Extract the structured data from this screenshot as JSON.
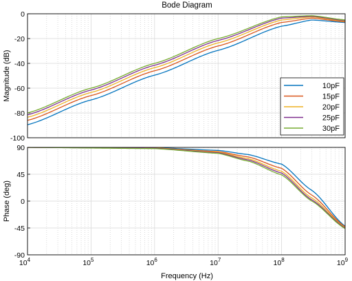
{
  "title": "Bode Diagram",
  "xlabel": "Frequency  (Hz)",
  "colors": {
    "series": [
      "#0072BD",
      "#D95319",
      "#EDB120",
      "#7E2F8E",
      "#77AC30"
    ],
    "grid_major": "#d9d9d9",
    "grid_minor": "#c8c8c8",
    "axis": "#000000"
  },
  "chart_data": [
    {
      "type": "line",
      "title": "Bode Diagram",
      "ylabel": "Magnitude (dB)",
      "xscale": "log",
      "xlim": [
        10000,
        1000000000
      ],
      "ylim": [
        -100,
        0
      ],
      "yticks": [
        "0",
        "-20",
        "-40",
        "-60",
        "-80",
        "-100"
      ],
      "grid": true,
      "legend_position": "right",
      "series": [
        {
          "name": "10pF",
          "x": [
            10000.0,
            100000.0,
            1000000.0,
            10000000.0,
            100000000.0,
            300000000.0,
            1000000000.0
          ],
          "y": [
            -89.5,
            -69.5,
            -49.5,
            -29.5,
            -10,
            -5,
            -7
          ]
        },
        {
          "name": "15pF",
          "x": [
            10000.0,
            100000.0,
            1000000.0,
            10000000.0,
            100000000.0,
            300000000.0,
            1000000000.0
          ],
          "y": [
            -86,
            -66,
            -46,
            -26,
            -7,
            -3.5,
            -6.5
          ]
        },
        {
          "name": "20pF",
          "x": [
            10000.0,
            100000.0,
            1000000.0,
            10000000.0,
            100000000.0,
            300000000.0,
            1000000000.0
          ],
          "y": [
            -83.5,
            -63.5,
            -43.5,
            -23.5,
            -5,
            -2.5,
            -6
          ]
        },
        {
          "name": "25pF",
          "x": [
            10000.0,
            100000.0,
            1000000.0,
            10000000.0,
            100000000.0,
            300000000.0,
            1000000000.0
          ],
          "y": [
            -81.5,
            -61.5,
            -41.5,
            -21.5,
            -3.5,
            -2,
            -5.5
          ]
        },
        {
          "name": "30pF",
          "x": [
            10000.0,
            100000.0,
            1000000.0,
            10000000.0,
            100000000.0,
            300000000.0,
            1000000000.0
          ],
          "y": [
            -80,
            -60,
            -40,
            -20,
            -2.5,
            -1.5,
            -5
          ]
        }
      ]
    },
    {
      "type": "line",
      "xlabel": "Frequency  (Hz)",
      "ylabel": "Phase (deg)",
      "xscale": "log",
      "xlim": [
        10000,
        1000000000
      ],
      "ylim": [
        -90,
        90
      ],
      "yticks": [
        "90",
        "45",
        "0",
        "-45",
        "-90"
      ],
      "xticks": [
        {
          "base": "10",
          "exp": "4"
        },
        {
          "base": "10",
          "exp": "5"
        },
        {
          "base": "10",
          "exp": "6"
        },
        {
          "base": "10",
          "exp": "7"
        },
        {
          "base": "10",
          "exp": "8"
        },
        {
          "base": "10",
          "exp": "9"
        }
      ],
      "grid": true,
      "series": [
        {
          "name": "10pF",
          "x": [
            10000.0,
            1000000.0,
            10000000.0,
            30000000.0,
            100000000.0,
            300000000.0,
            1000000000.0
          ],
          "y": [
            90,
            89.5,
            85,
            78,
            62,
            18,
            -42
          ]
        },
        {
          "name": "15pF",
          "x": [
            10000.0,
            1000000.0,
            10000000.0,
            30000000.0,
            100000000.0,
            300000000.0,
            1000000000.0
          ],
          "y": [
            90,
            89,
            83,
            74,
            55,
            10,
            -43
          ]
        },
        {
          "name": "20pF",
          "x": [
            10000.0,
            1000000.0,
            10000000.0,
            30000000.0,
            100000000.0,
            300000000.0,
            1000000000.0
          ],
          "y": [
            90,
            89,
            82,
            71,
            50,
            5,
            -44
          ]
        },
        {
          "name": "25pF",
          "x": [
            10000.0,
            1000000.0,
            10000000.0,
            30000000.0,
            100000000.0,
            300000000.0,
            1000000000.0
          ],
          "y": [
            90,
            88.5,
            81,
            69,
            47,
            2,
            -45
          ]
        },
        {
          "name": "30pF",
          "x": [
            10000.0,
            1000000.0,
            10000000.0,
            30000000.0,
            100000000.0,
            300000000.0,
            1000000000.0
          ],
          "y": [
            90,
            88,
            80,
            67,
            44,
            0,
            -46
          ]
        }
      ]
    }
  ]
}
